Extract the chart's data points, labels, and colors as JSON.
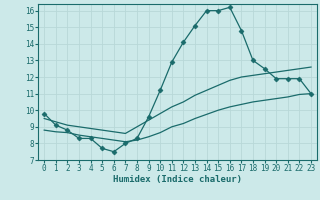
{
  "xlabel": "Humidex (Indice chaleur)",
  "background_color": "#cce9e9",
  "grid_color": "#b8d8d8",
  "line_color": "#1a6b6b",
  "spine_color": "#1a6b6b",
  "xlim": [
    -0.5,
    23.5
  ],
  "ylim": [
    7,
    16.4
  ],
  "xticks": [
    0,
    1,
    2,
    3,
    4,
    5,
    6,
    7,
    8,
    9,
    10,
    11,
    12,
    13,
    14,
    15,
    16,
    17,
    18,
    19,
    20,
    21,
    22,
    23
  ],
  "yticks": [
    7,
    8,
    9,
    10,
    11,
    12,
    13,
    14,
    15,
    16
  ],
  "line1_x": [
    0,
    1,
    2,
    3,
    4,
    5,
    6,
    7,
    8,
    9,
    10,
    11,
    12,
    13,
    14,
    15,
    16,
    17,
    18,
    19,
    20,
    21,
    22,
    23
  ],
  "line1_y": [
    9.8,
    9.1,
    8.8,
    8.3,
    8.3,
    7.7,
    7.5,
    8.0,
    8.3,
    9.6,
    11.2,
    12.9,
    14.1,
    15.1,
    16.0,
    16.0,
    16.2,
    14.8,
    13.0,
    12.5,
    11.9,
    11.9,
    11.9,
    11.0
  ],
  "line2_x": [
    0,
    1,
    2,
    3,
    4,
    5,
    6,
    7,
    8,
    9,
    10,
    11,
    12,
    13,
    14,
    15,
    16,
    17,
    18,
    19,
    20,
    21,
    22,
    23
  ],
  "line2_y": [
    9.5,
    9.3,
    9.1,
    9.0,
    8.9,
    8.8,
    8.7,
    8.6,
    9.0,
    9.4,
    9.8,
    10.2,
    10.5,
    10.9,
    11.2,
    11.5,
    11.8,
    12.0,
    12.1,
    12.2,
    12.3,
    12.4,
    12.5,
    12.6
  ],
  "line3_x": [
    0,
    1,
    2,
    3,
    4,
    5,
    6,
    7,
    8,
    9,
    10,
    11,
    12,
    13,
    14,
    15,
    16,
    17,
    18,
    19,
    20,
    21,
    22,
    23
  ],
  "line3_y": [
    8.8,
    8.7,
    8.65,
    8.5,
    8.4,
    8.3,
    8.2,
    8.1,
    8.2,
    8.4,
    8.65,
    9.0,
    9.2,
    9.5,
    9.75,
    10.0,
    10.2,
    10.35,
    10.5,
    10.6,
    10.7,
    10.8,
    10.95,
    11.0
  ],
  "tick_fontsize": 5.5,
  "xlabel_fontsize": 6.5,
  "marker_size": 2.5
}
